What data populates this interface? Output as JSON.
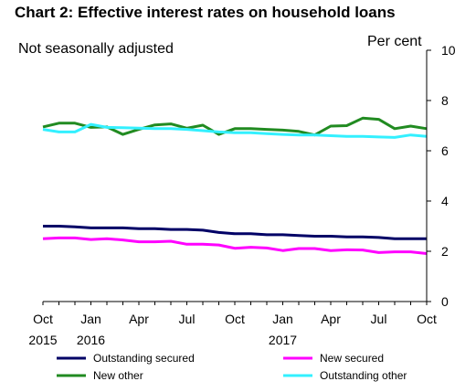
{
  "chart_data": {
    "type": "line",
    "title": "Chart 2: Effective interest rates on household loans",
    "subtitle": "Not seasonally adjusted",
    "ylabel": "Per cent",
    "ylim": [
      0,
      10
    ],
    "yticks": [
      0,
      2,
      4,
      6,
      8,
      10
    ],
    "y_axis_side": "right",
    "grid": false,
    "x": [
      "2015-10",
      "2015-11",
      "2015-12",
      "2016-01",
      "2016-02",
      "2016-03",
      "2016-04",
      "2016-05",
      "2016-06",
      "2016-07",
      "2016-08",
      "2016-09",
      "2016-10",
      "2016-11",
      "2016-12",
      "2017-01",
      "2017-02",
      "2017-03",
      "2017-04",
      "2017-05",
      "2017-06",
      "2017-07",
      "2017-08",
      "2017-09",
      "2017-10"
    ],
    "xtick_labels": [
      {
        "index": 0,
        "month": "Oct",
        "year": "2015"
      },
      {
        "index": 3,
        "month": "Jan",
        "year": "2016"
      },
      {
        "index": 6,
        "month": "Apr",
        "year": ""
      },
      {
        "index": 9,
        "month": "Jul",
        "year": ""
      },
      {
        "index": 12,
        "month": "Oct",
        "year": ""
      },
      {
        "index": 15,
        "month": "Jan",
        "year": "2017"
      },
      {
        "index": 18,
        "month": "Apr",
        "year": ""
      },
      {
        "index": 21,
        "month": "Jul",
        "year": ""
      },
      {
        "index": 24,
        "month": "Oct",
        "year": ""
      }
    ],
    "legend_placement": "bottom",
    "series": [
      {
        "name": "Outstanding secured",
        "color": "#000066",
        "values": [
          3.0,
          3.0,
          2.97,
          2.93,
          2.93,
          2.93,
          2.9,
          2.9,
          2.87,
          2.87,
          2.84,
          2.75,
          2.7,
          2.7,
          2.66,
          2.66,
          2.63,
          2.6,
          2.6,
          2.57,
          2.57,
          2.55,
          2.5,
          2.5,
          2.5
        ]
      },
      {
        "name": "New secured",
        "color": "#ff00ff",
        "values": [
          2.5,
          2.53,
          2.53,
          2.47,
          2.5,
          2.45,
          2.38,
          2.38,
          2.4,
          2.28,
          2.28,
          2.25,
          2.12,
          2.16,
          2.13,
          2.03,
          2.11,
          2.11,
          2.03,
          2.06,
          2.05,
          1.95,
          1.98,
          1.98,
          1.91
        ]
      },
      {
        "name": "New other",
        "color": "#218b21",
        "values": [
          6.95,
          7.1,
          7.1,
          6.93,
          6.95,
          6.65,
          6.85,
          7.03,
          7.07,
          6.9,
          7.02,
          6.65,
          6.88,
          6.88,
          6.85,
          6.82,
          6.77,
          6.63,
          6.98,
          7.0,
          7.3,
          7.25,
          6.88,
          6.98,
          6.88
        ]
      },
      {
        "name": "Outstanding other",
        "color": "#33f0ff",
        "values": [
          6.85,
          6.75,
          6.75,
          7.05,
          6.93,
          6.92,
          6.9,
          6.88,
          6.88,
          6.85,
          6.8,
          6.75,
          6.72,
          6.72,
          6.68,
          6.65,
          6.63,
          6.63,
          6.6,
          6.57,
          6.57,
          6.55,
          6.53,
          6.63,
          6.57
        ]
      }
    ]
  }
}
